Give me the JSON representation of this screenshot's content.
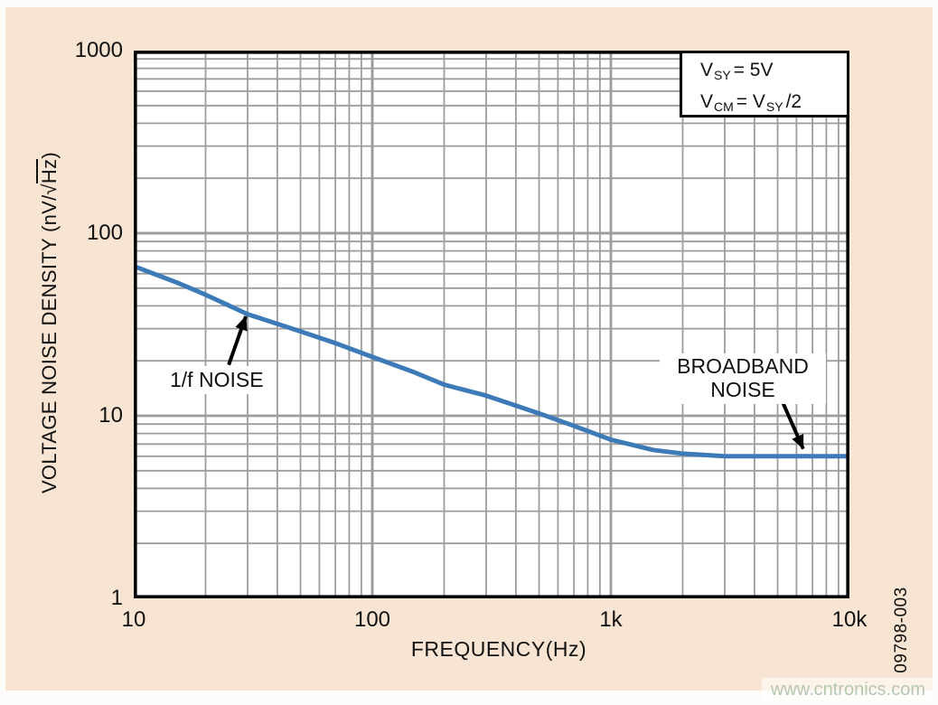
{
  "page": {
    "panel_bg": "#f8e4d2",
    "outer_bg": "#fdfcfb"
  },
  "figure_number": {
    "text": "09798-003"
  },
  "watermark": {
    "text": "www.cntronics.com",
    "color": "#b6c7ae"
  },
  "chart_data": {
    "type": "line",
    "title": "",
    "xlabel": "FREQUENCY(Hz)",
    "ylabel": "VOLTAGE NOISE DENSITY (nV/√Hz)",
    "ylabel_parts": {
      "pre": "VOLTAGE NOISE DENSITY (nV/",
      "sqrt": "√",
      "radicand": "Hz",
      "post": ")"
    },
    "x_scale": "log",
    "y_scale": "log",
    "xlim": [
      10,
      10000
    ],
    "ylim": [
      1,
      1000
    ],
    "grid": "log decades with minor lines 2-9, on",
    "x_ticks": {
      "values": [
        10,
        100,
        1000,
        10000
      ],
      "labels": [
        "10",
        "100",
        "1k",
        "10k"
      ]
    },
    "y_ticks": {
      "values": [
        1000,
        100,
        10,
        1
      ],
      "labels": [
        "1000",
        "100",
        "10",
        "1"
      ]
    },
    "conditions": {
      "line1": {
        "base": "V",
        "sub": "SY",
        "rest": "= 5V"
      },
      "line2": {
        "base": "V",
        "sub": "CM",
        "mid": "= V",
        "sub2": "SY",
        "rest": "/2"
      }
    },
    "series": [
      {
        "name": "voltage noise density",
        "color": "#3d7ab8",
        "points": [
          [
            10,
            66
          ],
          [
            15,
            54
          ],
          [
            20,
            46
          ],
          [
            30,
            36
          ],
          [
            50,
            29
          ],
          [
            70,
            25
          ],
          [
            100,
            21
          ],
          [
            150,
            17.3
          ],
          [
            200,
            14.8
          ],
          [
            300,
            12.9
          ],
          [
            500,
            10.3
          ],
          [
            700,
            8.8
          ],
          [
            1000,
            7.4
          ],
          [
            1500,
            6.5
          ],
          [
            2000,
            6.2
          ],
          [
            3000,
            6.0
          ],
          [
            5000,
            6.0
          ],
          [
            10000,
            6.0
          ]
        ]
      }
    ],
    "annotations": [
      {
        "id": "one-over-f",
        "text": "1/f NOISE",
        "arrow": {
          "from": [
            25,
            19
          ],
          "to": [
            29.5,
            35
          ]
        }
      },
      {
        "id": "broadband",
        "text_lines": [
          "BROADBAND",
          "NOISE"
        ],
        "arrow": {
          "from": [
            5200,
            12.2
          ],
          "to": [
            6400,
            6.6
          ]
        }
      }
    ],
    "style": {
      "grid_color": "#9c9c9c",
      "frame_color": "#000000",
      "arrow_color": "#000000",
      "plot_bg": "#ffffff"
    }
  }
}
